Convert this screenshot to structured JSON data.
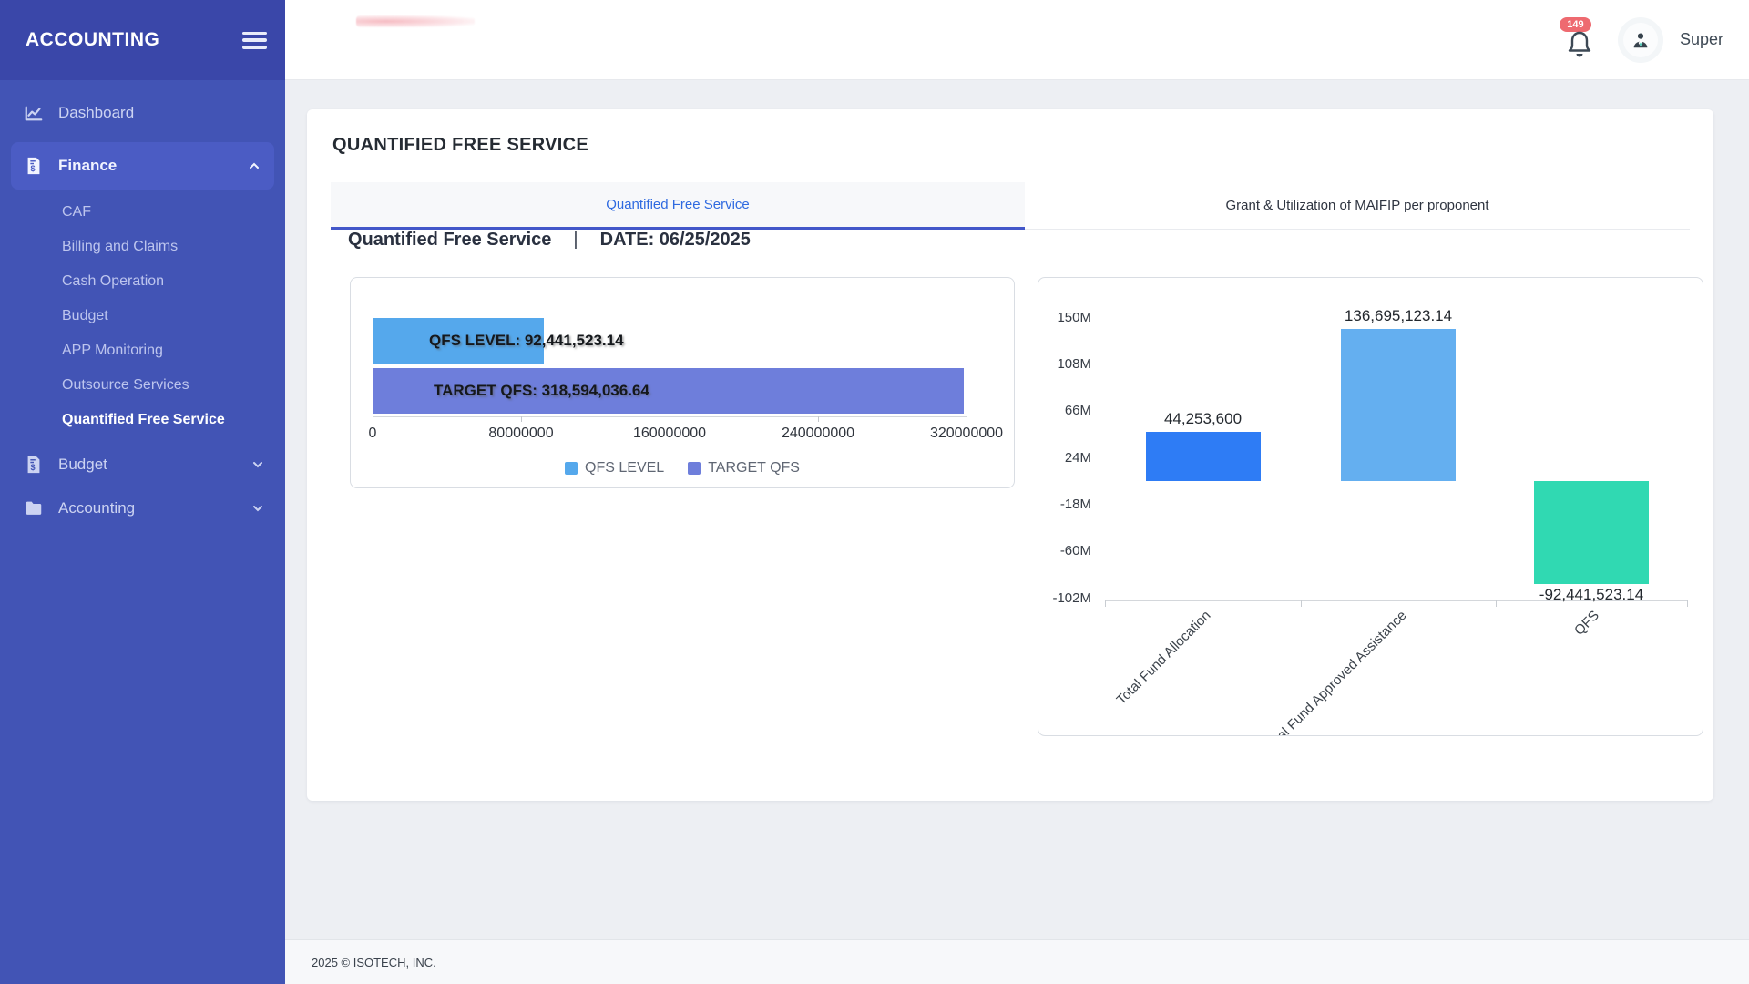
{
  "sidebar": {
    "brand": "ACCOUNTING",
    "items": [
      {
        "label": "Dashboard"
      },
      {
        "label": "Finance",
        "expanded": true,
        "active_child": "Quantified Free Service",
        "children": [
          "CAF",
          "Billing and Claims",
          "Cash Operation",
          "Budget",
          "APP Monitoring",
          "Outsource Services",
          "Quantified Free Service"
        ]
      },
      {
        "label": "Budget",
        "expanded": false
      },
      {
        "label": "Accounting",
        "expanded": false
      }
    ]
  },
  "header": {
    "notification_count": "149",
    "user_name": "Super"
  },
  "main": {
    "page_title": "QUANTIFIED FREE SERVICE",
    "tabs": [
      {
        "label": "Quantified Free Service",
        "active": true
      },
      {
        "label": "Grant & Utilization of MAIFIP per proponent",
        "active": false
      }
    ],
    "section_heading": "Quantified Free Service",
    "separator": "|",
    "date_label": "DATE: 06/25/2025"
  },
  "footer": {
    "copyright": "2025 © ISOTECH, INC."
  },
  "colors": {
    "sidebar_bg": "#4254b5",
    "sidebar_brand_bg": "#3a47a9",
    "active_tab_text": "#2f6ae0",
    "active_tab_underline": "#4357c9",
    "notification_badge": "#ee6a70",
    "content_bg": "#edeff3"
  },
  "chart_data": [
    {
      "type": "bar",
      "orientation": "horizontal",
      "title": "",
      "series": [
        {
          "name": "QFS LEVEL",
          "value": 92441523.14,
          "label": "QFS LEVEL: 92,441,523.14",
          "color": "#55a8ec"
        },
        {
          "name": "TARGET QFS",
          "value": 318594036.64,
          "label": "TARGET QFS: 318,594,036.64",
          "color": "#6e7edb"
        }
      ],
      "xlim": [
        0,
        320000000
      ],
      "x_ticks": [
        "0",
        "80000000",
        "160000000",
        "240000000",
        "320000000"
      ],
      "legend": [
        "QFS LEVEL",
        "TARGET QFS"
      ],
      "legend_position": "bottom",
      "grid": false
    },
    {
      "type": "bar",
      "orientation": "vertical",
      "categories": [
        "Total Fund Allocation",
        "Total Fund Approved Assistance",
        "QFS"
      ],
      "values": [
        44253600,
        136695123.14,
        -92441523.14
      ],
      "data_labels": [
        "44,253,600",
        "136,695,123.14",
        "-92,441,523.14"
      ],
      "bar_colors": [
        "#2e7cf5",
        "#64aff0",
        "#30d9b2"
      ],
      "y_ticks": [
        "150M",
        "108M",
        "66M",
        "24M",
        "-18M",
        "-60M",
        "-102M"
      ],
      "y_tick_values": [
        150000000,
        108000000,
        66000000,
        24000000,
        -18000000,
        -60000000,
        -102000000
      ],
      "ylim": [
        -107000000,
        166000000
      ],
      "x_label_rotation": 45,
      "grid": false
    }
  ]
}
